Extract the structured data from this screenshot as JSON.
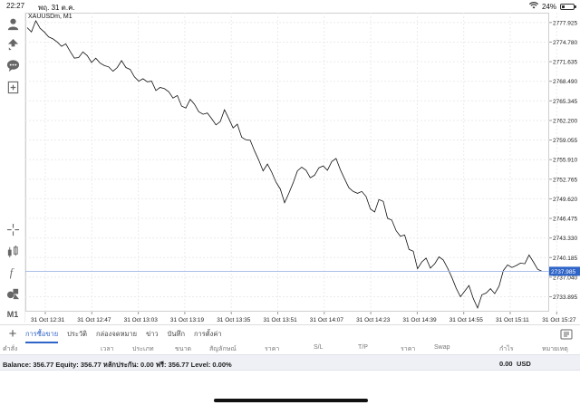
{
  "status": {
    "time": "22:27",
    "date": "พฤ. 31 ต.ค.",
    "battery": "24%",
    "battery_level": 0.24
  },
  "chart": {
    "symbol": "XAUUSDm, M1",
    "current_price": "2737.985",
    "y_ticks": [
      "2777.925",
      "2774.780",
      "2771.635",
      "2768.490",
      "2765.345",
      "2762.200",
      "2759.055",
      "2755.910",
      "2752.765",
      "2749.620",
      "2746.475",
      "2743.330",
      "2740.185",
      "2737.040",
      "2733.895"
    ],
    "x_ticks": [
      "31 Oct 12:31",
      "31 Oct 12:47",
      "31 Oct 13:03",
      "31 Oct 13:19",
      "31 Oct 13:35",
      "31 Oct 13:51",
      "31 Oct 14:07",
      "31 Oct 14:23",
      "31 Oct 14:39",
      "31 Oct 14:55",
      "31 Oct 15:11",
      "31 Oct 15:27"
    ],
    "accent": "#2f64c8"
  },
  "chart_data": {
    "type": "line",
    "title": "XAUUSDm, M1",
    "ylim": [
      2731.5,
      2779.5
    ],
    "xlabel": "",
    "ylabel": "",
    "grid": true,
    "current_price": 2737.985,
    "series": [
      {
        "values": [
          2777.1,
          2776.4,
          2778.2,
          2777.0,
          2776.4,
          2775.6,
          2775.3,
          2774.8,
          2774.1,
          2774.5,
          2773.3,
          2772.2,
          2772.3,
          2773.2,
          2772.6,
          2771.5,
          2772.2,
          2771.4,
          2771.0,
          2770.8,
          2770.1,
          2770.7,
          2771.8,
          2770.7,
          2770.4,
          2769.2,
          2768.5,
          2768.9,
          2768.4,
          2768.5,
          2767.0,
          2767.5,
          2767.3,
          2766.8,
          2765.8,
          2766.2,
          2764.5,
          2764.2,
          2765.6,
          2764.8,
          2763.6,
          2763.2,
          2763.4,
          2762.5,
          2761.5,
          2762.0,
          2763.9,
          2762.5,
          2761.0,
          2761.6,
          2759.5,
          2759.1,
          2759.0,
          2757.3,
          2755.8,
          2754.1,
          2755.2,
          2753.9,
          2752.3,
          2751.2,
          2749.0,
          2750.5,
          2752.2,
          2754.1,
          2754.7,
          2754.2,
          2753.0,
          2753.4,
          2754.6,
          2754.9,
          2754.2,
          2755.6,
          2756.1,
          2754.3,
          2752.8,
          2751.4,
          2750.8,
          2750.5,
          2750.8,
          2750.0,
          2748.0,
          2747.5,
          2749.5,
          2749.2,
          2746.5,
          2746.2,
          2744.5,
          2743.6,
          2743.8,
          2741.5,
          2741.2,
          2738.4,
          2739.5,
          2740.1,
          2738.5,
          2739.2,
          2740.3,
          2739.8,
          2738.5,
          2737.0,
          2735.3,
          2733.9,
          2734.8,
          2735.7,
          2733.6,
          2732.1,
          2734.2,
          2734.5,
          2735.2,
          2734.4,
          2735.6,
          2738.1,
          2739.0,
          2738.6,
          2738.9,
          2739.3,
          2739.2,
          2740.6,
          2739.5,
          2738.3,
          2737.985
        ]
      }
    ]
  },
  "toolbar": {
    "m1_label": "M1"
  },
  "tabs": [
    {
      "label": "การซื้อขาย",
      "active": true
    },
    {
      "label": "ประวัติ",
      "active": false
    },
    {
      "label": "กล่องจดหมาย",
      "active": false
    },
    {
      "label": "ข่าว",
      "active": false
    },
    {
      "label": "บันทึก",
      "active": false
    },
    {
      "label": "การตั้งค่า",
      "active": false
    }
  ],
  "columns": {
    "c0": "คำสั่ง",
    "c1": "เวลา",
    "c2": "ประเภท",
    "c3": "ขนาด",
    "c4": "สัญลักษณ์",
    "c5": "ราคา",
    "c6": "S/L",
    "c7": "T/P",
    "c8": "ราคา",
    "c9": "Swap",
    "c10": "กำไร",
    "c11": "หมายเหตุ"
  },
  "balance": {
    "text": "Balance: 356.77 Equity: 356.77 หลักประกัน: 0.00 ฟรี: 356.77 Level: 0.00%",
    "profit": "0.00",
    "currency": "USD"
  }
}
